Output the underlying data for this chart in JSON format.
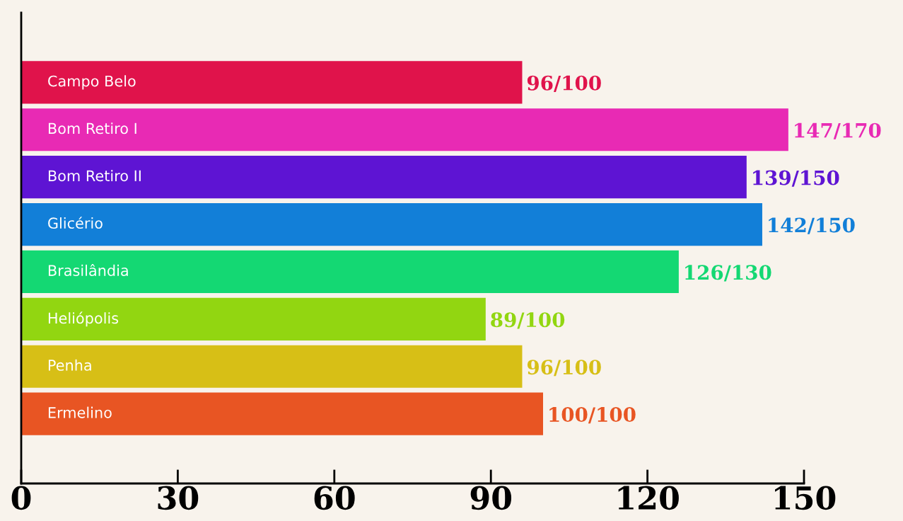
{
  "chart_data": {
    "type": "bar",
    "orientation": "horizontal",
    "categories": [
      "Campo Belo",
      "Bom Retiro I",
      "Bom Retiro II",
      "Glicério",
      "Brasilândia",
      "Heliópolis",
      "Penha",
      "Ermelino"
    ],
    "values": [
      96,
      147,
      139,
      142,
      126,
      89,
      96,
      100
    ],
    "value_labels": [
      "96/100",
      "147/170",
      "139/150",
      "142/150",
      "126/130",
      "89/100",
      "96/100",
      "100/100"
    ],
    "colors": [
      "#e0134b",
      "#e82ab4",
      "#5e14d3",
      "#127fd8",
      "#14d873",
      "#92d611",
      "#d7bf16",
      "#e85523"
    ],
    "xlim": [
      0,
      150
    ],
    "xticks": [
      0,
      30,
      60,
      90,
      120,
      150
    ],
    "grid": false,
    "legend": false
  }
}
